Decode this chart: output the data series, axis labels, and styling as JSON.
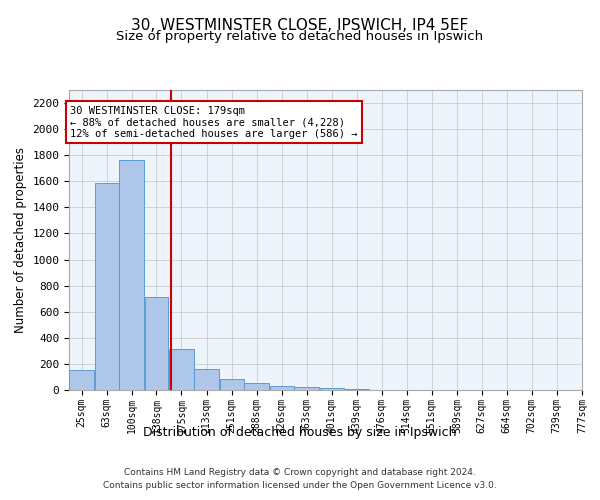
{
  "title1": "30, WESTMINSTER CLOSE, IPSWICH, IP4 5EF",
  "title2": "Size of property relative to detached houses in Ipswich",
  "xlabel": "Distribution of detached houses by size in Ipswich",
  "ylabel": "Number of detached properties",
  "footer1": "Contains HM Land Registry data © Crown copyright and database right 2024.",
  "footer2": "Contains public sector information licensed under the Open Government Licence v3.0.",
  "annotation_line1": "30 WESTMINSTER CLOSE: 179sqm",
  "annotation_line2": "← 88% of detached houses are smaller (4,228)",
  "annotation_line3": "12% of semi-detached houses are larger (586) →",
  "bar_labels": [
    "25sqm",
    "63sqm",
    "100sqm",
    "138sqm",
    "175sqm",
    "213sqm",
    "251sqm",
    "288sqm",
    "326sqm",
    "363sqm",
    "401sqm",
    "439sqm",
    "476sqm",
    "514sqm",
    "551sqm",
    "589sqm",
    "627sqm",
    "664sqm",
    "702sqm",
    "739sqm",
    "777sqm"
  ],
  "bar_values": [
    155,
    1590,
    1760,
    710,
    315,
    160,
    88,
    55,
    30,
    20,
    12,
    8,
    0,
    0,
    0,
    0,
    0,
    0,
    0,
    0,
    0
  ],
  "bin_edges": [
    25,
    63,
    100,
    138,
    175,
    213,
    251,
    288,
    326,
    363,
    401,
    439,
    476,
    514,
    551,
    589,
    627,
    664,
    702,
    739,
    777
  ],
  "bar_color": "#AEC6E8",
  "bar_edge_color": "#5B9BD5",
  "vline_x": 179,
  "vline_color": "#CC0000",
  "annotation_box_color": "#CC0000",
  "ylim": [
    0,
    2300
  ],
  "yticks": [
    0,
    200,
    400,
    600,
    800,
    1000,
    1200,
    1400,
    1600,
    1800,
    2000,
    2200
  ],
  "grid_color": "#CCCCCC",
  "bg_color": "#EEF4FB",
  "fig_bg_color": "#FFFFFF",
  "title1_fontsize": 11,
  "title2_fontsize": 9.5,
  "ylabel_fontsize": 8.5,
  "xlabel_fontsize": 9,
  "ytick_fontsize": 8,
  "xtick_fontsize": 7,
  "annotation_fontsize": 7.5,
  "footer_fontsize": 6.5
}
